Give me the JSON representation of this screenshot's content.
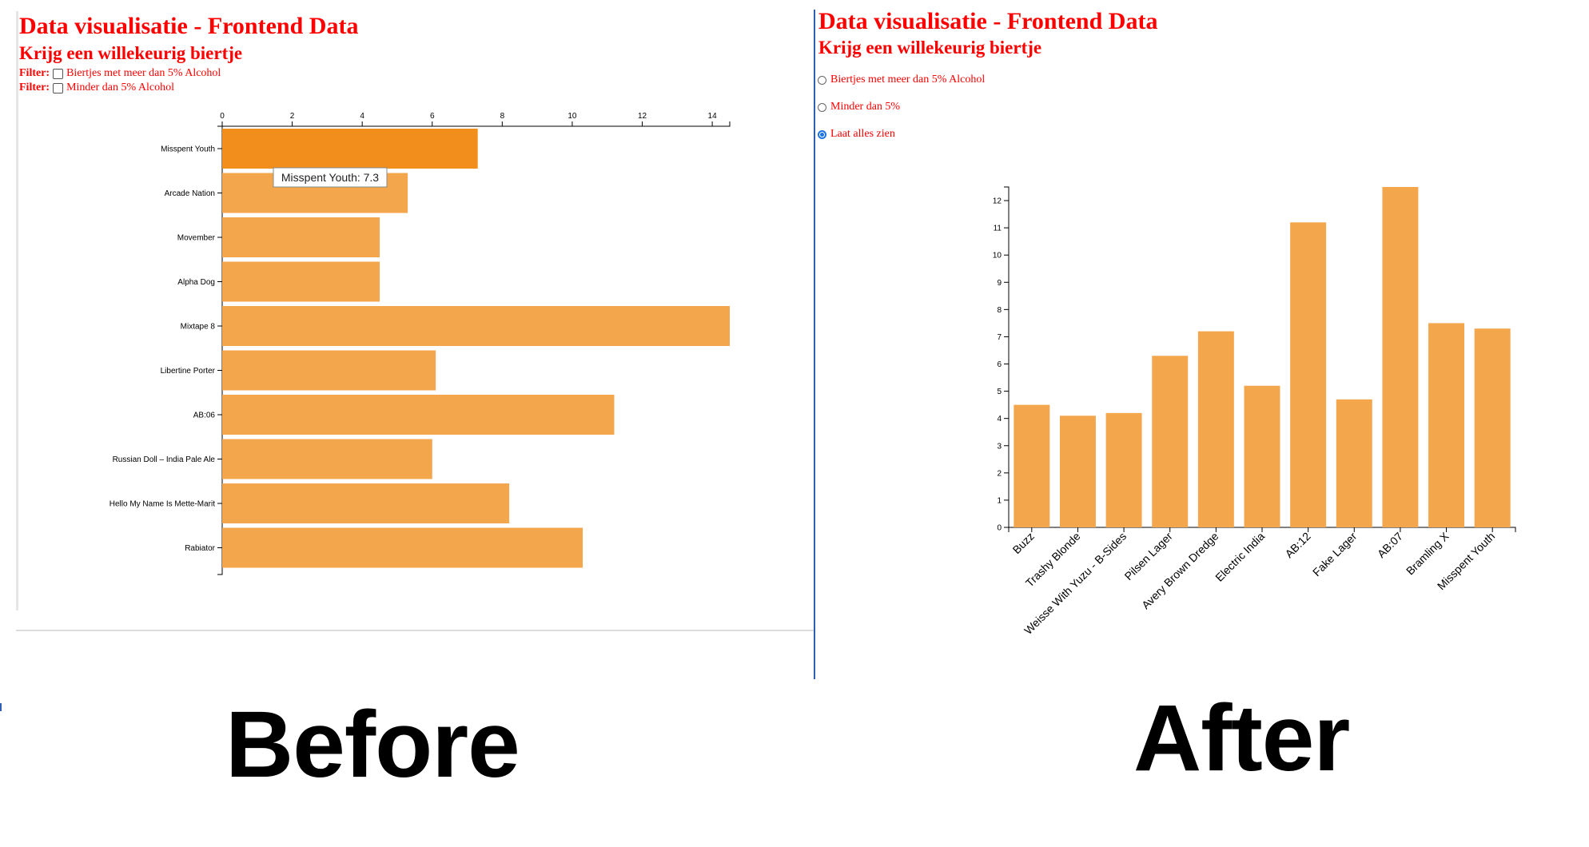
{
  "before": {
    "title": "Data visualisatie - Frontend Data",
    "subtitle": "Krijg een willekeurig biertje",
    "filters": [
      {
        "label": "Filter:",
        "text": "Biertjes met meer dan 5% Alcohol",
        "checked": false
      },
      {
        "label": "Filter:",
        "text": "Minder dan 5% Alcohol",
        "checked": false
      }
    ],
    "tooltip": "Misspent Youth: 7.3"
  },
  "after": {
    "title": "Data visualisatie - Frontend Data",
    "subtitle": "Krijg een willekeurig biertje",
    "radios": [
      {
        "text": "Biertjes met meer dan 5% Alcohol",
        "checked": false
      },
      {
        "text": "Minder dan 5%",
        "checked": false
      },
      {
        "text": "Laat alles zien",
        "checked": true
      }
    ]
  },
  "captions": {
    "before": "Before",
    "after": "After"
  },
  "colors": {
    "bar": "#f4a64c",
    "bar_highlight": "#f28e1c",
    "heading": "#ff0000",
    "radio_checked": "#1a73e8"
  },
  "chart_data": [
    {
      "type": "bar",
      "orientation": "horizontal",
      "categories": [
        "Misspent Youth",
        "Arcade Nation",
        "Movember",
        "Alpha Dog",
        "Mixtape 8",
        "Libertine Porter",
        "AB:06",
        "Russian Doll – India Pale Ale",
        "Hello My Name Is Mette-Marit",
        "Rabiator"
      ],
      "values": [
        7.3,
        5.3,
        4.5,
        4.5,
        14.5,
        6.1,
        11.2,
        6.0,
        8.2,
        10.3
      ],
      "xlim": [
        0,
        14.5
      ],
      "xticks": [
        0,
        2,
        4,
        6,
        8,
        10,
        12,
        14
      ],
      "highlighted": "Misspent Youth"
    },
    {
      "type": "bar",
      "orientation": "vertical",
      "categories": [
        "Buzz",
        "Trashy Blonde",
        "Weisse With Yuzu - B-Sides",
        "Pilsen Lager",
        "Avery Brown Dredge",
        "Electric India",
        "AB:12",
        "Fake Lager",
        "AB:07",
        "Bramling X",
        "Misspent Youth"
      ],
      "values": [
        4.5,
        4.1,
        4.2,
        6.3,
        7.2,
        5.2,
        11.2,
        4.7,
        12.5,
        7.5,
        7.3
      ],
      "ylim": [
        0,
        12.5
      ],
      "yticks": [
        0,
        1,
        2,
        3,
        4,
        5,
        6,
        7,
        8,
        9,
        10,
        11,
        12
      ]
    }
  ]
}
